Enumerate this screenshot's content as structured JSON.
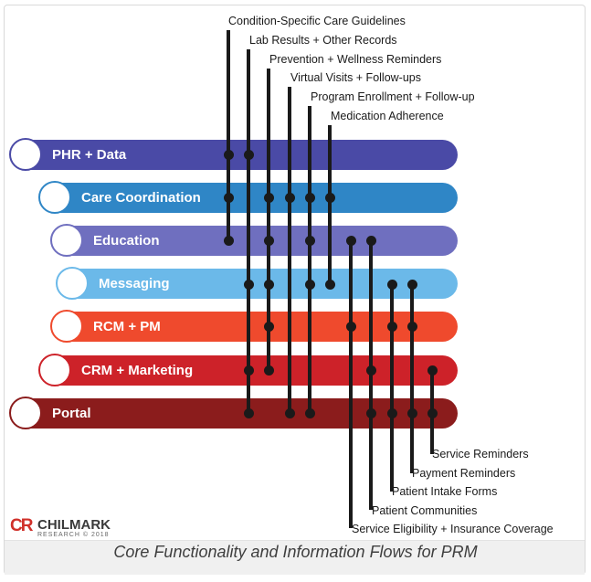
{
  "top_labels": [
    "Condition-Specific Care Guidelines",
    "Lab Results + Other Records",
    "Prevention + Wellness Reminders",
    "Virtual Visits + Follow-ups",
    "Program Enrollment + Follow-up",
    "Medication Adherence"
  ],
  "bands": [
    {
      "label": "PHR + Data",
      "color": "#4a4aa6"
    },
    {
      "label": "Care Coordination",
      "color": "#2f86c6"
    },
    {
      "label": "Education",
      "color": "#6f6fbf"
    },
    {
      "label": "Messaging",
      "color": "#6bb9e9"
    },
    {
      "label": "RCM + PM",
      "color": "#ef4a2d"
    },
    {
      "label": "CRM + Marketing",
      "color": "#cd2229"
    },
    {
      "label": "Portal",
      "color": "#8b1c1c"
    }
  ],
  "bottom_labels": [
    "Service Reminders",
    "Payment Reminders",
    "Patient Intake Forms",
    "Patient Communities",
    "Service Eligibility + Insurance Coverage"
  ],
  "logo": {
    "mark": "CR",
    "name": "CHILMARK",
    "sub": "RESEARCH © 2018"
  },
  "caption": "Core Functionality and Information Flows for PRM"
}
